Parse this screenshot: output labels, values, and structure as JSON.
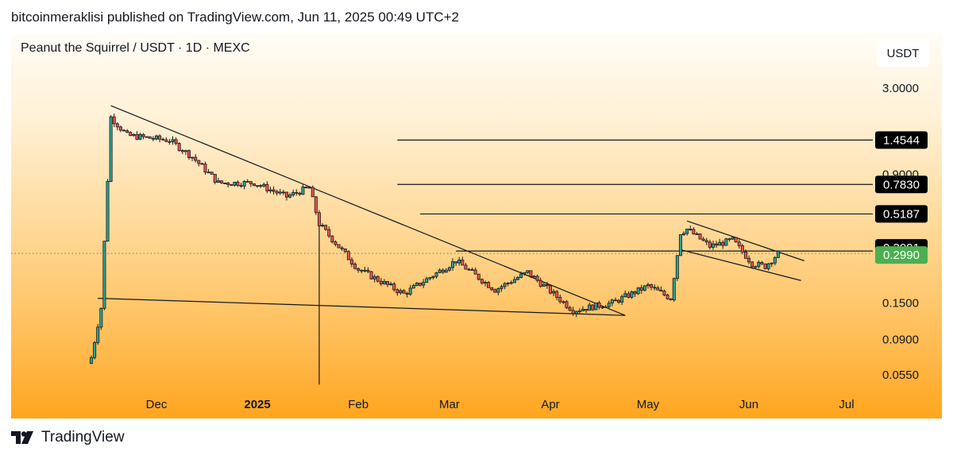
{
  "header": {
    "publisher_line": "bitcoinmeraklisi published on TradingView.com, Jun 11, 2025 00:49 UTC+2"
  },
  "chart": {
    "symbol_line": "Peanut the Squirrel / USDT · 1D · MEXC",
    "currency_unit": "USDT"
  },
  "colors": {
    "up": "#26a69a",
    "down": "#ef5350",
    "line": "#131722",
    "current_price_bg": "#4caf50",
    "level_bg": "#000000"
  },
  "footer": {
    "brand": "TradingView",
    "logo_icon": "tradingview-logo-icon"
  },
  "chart_data": {
    "type": "candlestick",
    "y_scale": "log",
    "y_axis_ticks": [
      "3.0000",
      "0.9000",
      "0.1500",
      "0.0900",
      "0.0550"
    ],
    "x_axis_labels": [
      "Dec",
      "2025",
      "Feb",
      "Mar",
      "Apr",
      "May",
      "Jun",
      "Jul"
    ],
    "price_labels": [
      {
        "value": "1.4544",
        "type": "level"
      },
      {
        "value": "0.7830",
        "type": "level"
      },
      {
        "value": "0.5187",
        "type": "level"
      },
      {
        "value": "0.3091",
        "type": "level"
      },
      {
        "value": "0.2990",
        "type": "current"
      }
    ],
    "approx_path": [
      {
        "date": "2024-11-11",
        "close": 0.07
      },
      {
        "date": "2024-11-14",
        "close": 0.14
      },
      {
        "date": "2024-11-15",
        "close": 0.35
      },
      {
        "date": "2024-11-17",
        "close": 2.0
      },
      {
        "date": "2024-11-22",
        "close": 1.55
      },
      {
        "date": "2024-12-05",
        "close": 1.45
      },
      {
        "date": "2024-12-12",
        "close": 1.15
      },
      {
        "date": "2024-12-20",
        "close": 0.8
      },
      {
        "date": "2024-12-31",
        "close": 0.8
      },
      {
        "date": "2025-01-10",
        "close": 0.66
      },
      {
        "date": "2025-01-17",
        "close": 0.75
      },
      {
        "date": "2025-01-20",
        "close": 0.45
      },
      {
        "date": "2025-02-01",
        "close": 0.24
      },
      {
        "date": "2025-02-15",
        "close": 0.17
      },
      {
        "date": "2025-03-03",
        "close": 0.27
      },
      {
        "date": "2025-03-15",
        "close": 0.18
      },
      {
        "date": "2025-03-25",
        "close": 0.23
      },
      {
        "date": "2025-04-08",
        "close": 0.135
      },
      {
        "date": "2025-04-20",
        "close": 0.15
      },
      {
        "date": "2025-05-01",
        "close": 0.19
      },
      {
        "date": "2025-05-08",
        "close": 0.16
      },
      {
        "date": "2025-05-11",
        "close": 0.4
      },
      {
        "date": "2025-05-13",
        "close": 0.42
      },
      {
        "date": "2025-05-20",
        "close": 0.33
      },
      {
        "date": "2025-05-27",
        "close": 0.36
      },
      {
        "date": "2025-06-02",
        "close": 0.26
      },
      {
        "date": "2025-06-06",
        "close": 0.25
      },
      {
        "date": "2025-06-10",
        "close": 0.299
      }
    ],
    "annotations": {
      "horizontal_levels": [
        1.4544,
        0.783,
        0.5187,
        0.3091
      ],
      "descending_resistance": [
        {
          "date": "2024-11-17",
          "price": 2.35
        },
        {
          "date": "2025-04-24",
          "price": 0.126
        }
      ],
      "support_line": [
        {
          "date": "2024-11-13",
          "price": 0.16
        },
        {
          "date": "2025-04-24",
          "price": 0.126
        }
      ],
      "vertical_marker": {
        "date": "2025-01-20",
        "from": 0.5,
        "to": 0.048
      },
      "flag_upper": [
        {
          "date": "2025-05-13",
          "price": 0.47
        },
        {
          "date": "2025-06-18",
          "price": 0.27
        }
      ],
      "flag_lower": [
        {
          "date": "2025-05-11",
          "price": 0.315
        },
        {
          "date": "2025-06-17",
          "price": 0.205
        }
      ]
    }
  }
}
